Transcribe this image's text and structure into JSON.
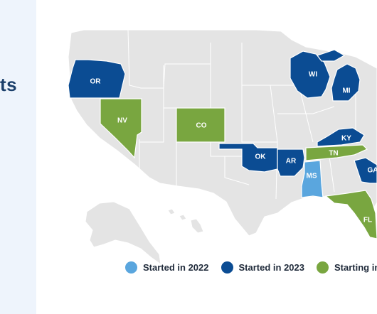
{
  "heading_fragment": "ts",
  "colors": {
    "started_2022": "#5aa6de",
    "started_2023": "#0b4c93",
    "starting_next": "#79a640",
    "inactive_state": "#e4e4e4",
    "state_border": "#ffffff",
    "side_panel": "#eef4fc"
  },
  "states": [
    {
      "label": "OR",
      "status": "started_2023"
    },
    {
      "label": "NV",
      "status": "starting_next"
    },
    {
      "label": "CO",
      "status": "starting_next"
    },
    {
      "label": "WI",
      "status": "started_2023"
    },
    {
      "label": "MI",
      "status": "started_2023"
    },
    {
      "label": "KY",
      "status": "started_2023"
    },
    {
      "label": "OK",
      "status": "started_2023"
    },
    {
      "label": "AR",
      "status": "started_2023"
    },
    {
      "label": "TN",
      "status": "starting_next"
    },
    {
      "label": "MS",
      "status": "started_2022"
    },
    {
      "label": "GA",
      "status": "started_2023"
    },
    {
      "label": "FL",
      "status": "starting_next"
    }
  ],
  "legend": [
    {
      "label": "Started in 2022",
      "status": "started_2022"
    },
    {
      "label": "Started in 2023",
      "status": "started_2023"
    },
    {
      "label": "Starting in",
      "status": "starting_next"
    }
  ]
}
